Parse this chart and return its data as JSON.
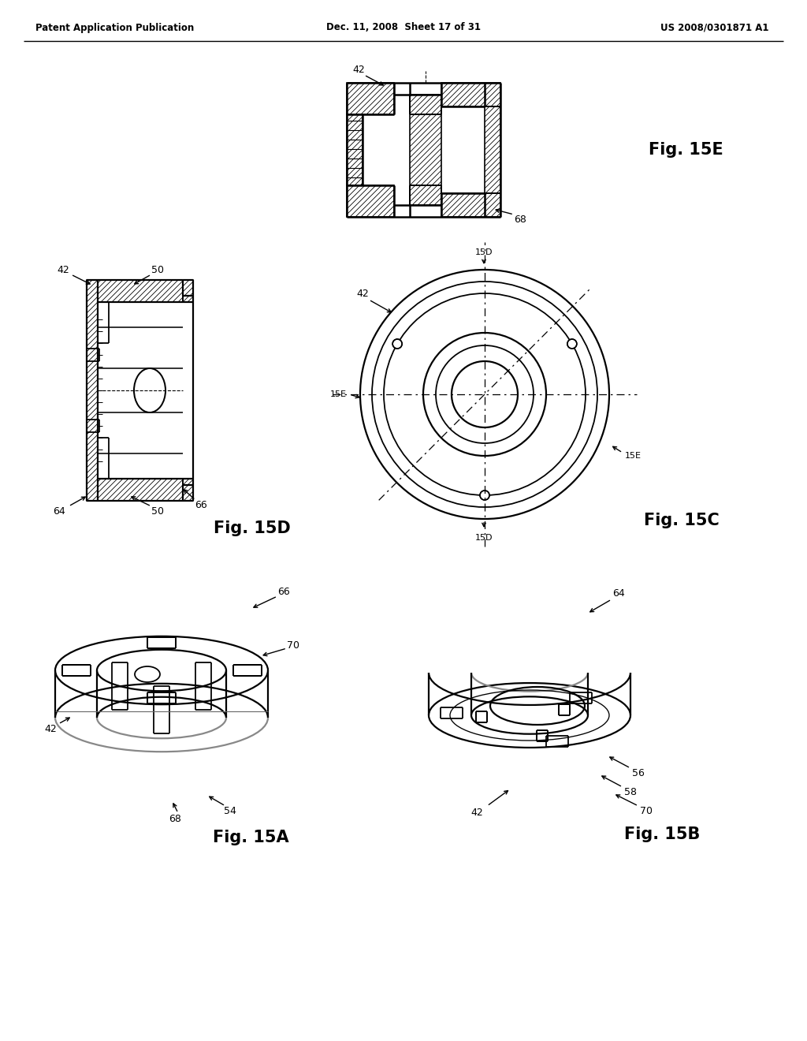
{
  "bg_color": "#ffffff",
  "line_color": "#000000",
  "header_left": "Patent Application Publication",
  "header_center": "Dec. 11, 2008  Sheet 17 of 31",
  "header_right": "US 2008/0301871 A1"
}
